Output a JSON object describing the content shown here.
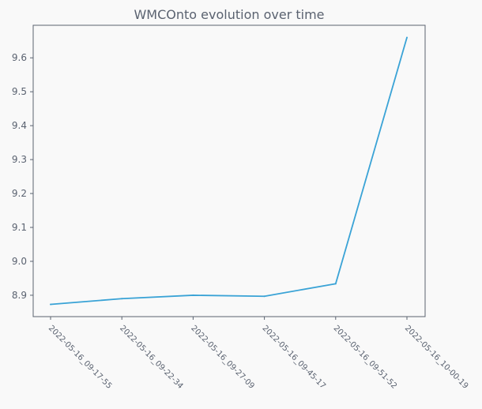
{
  "chart_data": {
    "type": "line",
    "title": "WMCOnto evolution over time",
    "xlabel": "",
    "ylabel": "",
    "categories": [
      "2022-05-16_09-17-55",
      "2022-05-16_09-22-34",
      "2022-05-16_09-27-09",
      "2022-05-16_09-45-17",
      "2022-05-16_09-51-52",
      "2022-05-16_10-00-19"
    ],
    "series": [
      {
        "values": [
          8.873,
          8.89,
          8.9,
          8.897,
          8.934,
          9.66
        ]
      }
    ],
    "ylim": [
      8.837,
      9.696
    ],
    "yticks": [
      8.9,
      9.0,
      9.1,
      9.2,
      9.3,
      9.4,
      9.5,
      9.6
    ],
    "ytick_labels": [
      "8.9",
      "9.0",
      "9.1",
      "9.2",
      "9.3",
      "9.4",
      "9.5",
      "9.6"
    ],
    "grid": false,
    "legend": "none",
    "colors": {
      "background": "#f9f9f9",
      "line": "#3aa3d6",
      "axis": "#5a6270",
      "text": "#5a6270"
    }
  }
}
